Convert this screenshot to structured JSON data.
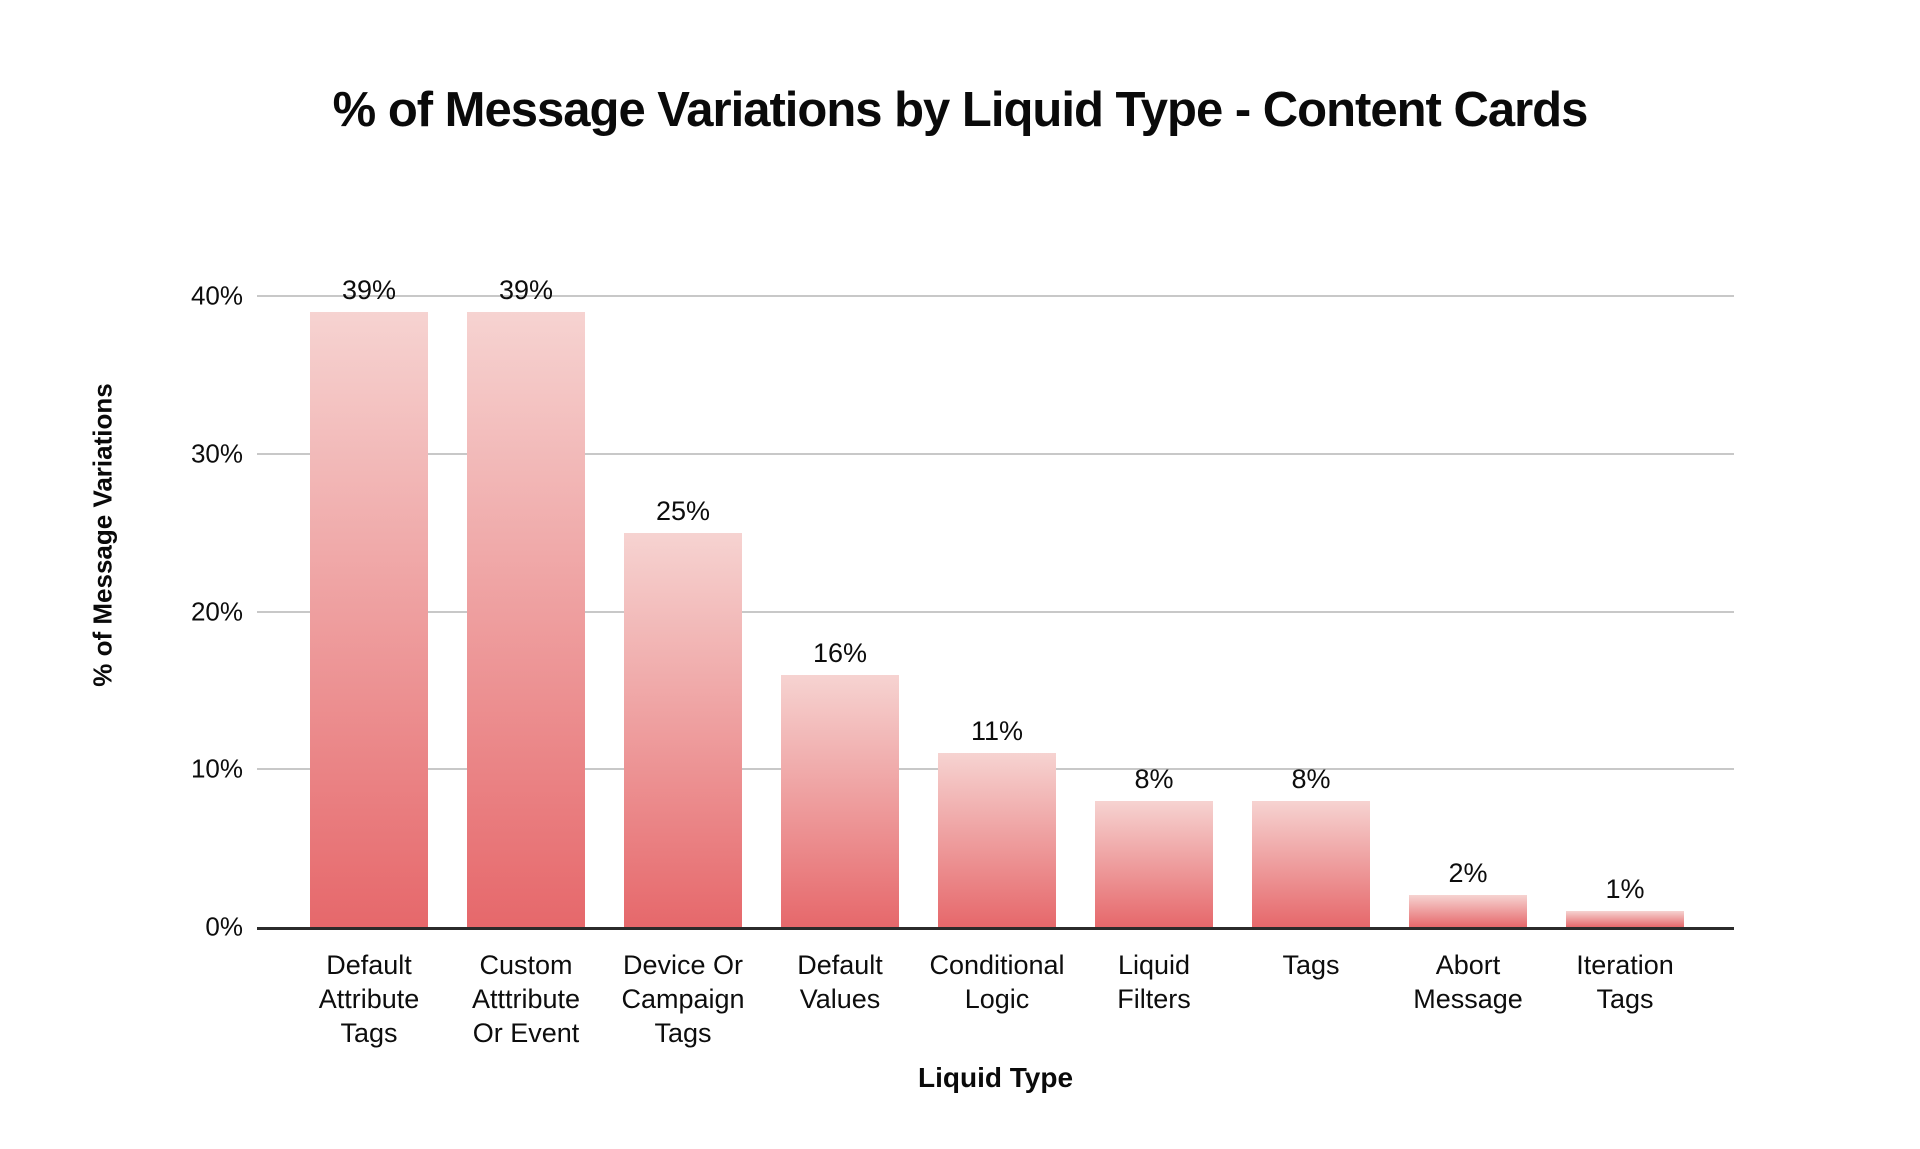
{
  "chart_data": {
    "type": "bar",
    "title": "% of Message Variations by Liquid Type - Content Cards",
    "xlabel": "Liquid Type",
    "ylabel": "% of Message Variations",
    "ylim": [
      0,
      40
    ],
    "grid": true,
    "legend": false,
    "background": "#ffffff",
    "categories": [
      "Default Attribute Tags",
      "Custom Atttribute Or Event",
      "Device Or Campaign Tags",
      "Default Values",
      "Conditional Logic",
      "Liquid Filters",
      "Tags",
      "Abort Message",
      "Iteration Tags"
    ],
    "values": [
      39,
      39,
      25,
      16,
      11,
      8,
      8,
      2,
      1
    ],
    "bar_labels": [
      "39%",
      "39%",
      "25%",
      "16%",
      "11%",
      "8%",
      "8%",
      "2%",
      "1%"
    ],
    "xtick_labels": [
      "Default\nAttribute\nTags",
      "Custom\nAtttribute\nOr Event",
      "Device Or\nCampaign\nTags",
      "Default\nValues",
      "Conditional\nLogic",
      "Liquid\nFilters",
      "Tags",
      "Abort\nMessage",
      "Iteration\nTags"
    ],
    "yticks": [
      {
        "label": "40%",
        "value": 40
      },
      {
        "label": "30%",
        "value": 30
      },
      {
        "label": "20%",
        "value": 20
      },
      {
        "label": "10%",
        "value": 10
      },
      {
        "label": "0%",
        "value": 0
      }
    ],
    "colors": {
      "bar_gradient_top": "#f6d3d1",
      "bar_gradient_bottom": "#e6686b",
      "gridline": "#c8c8c8",
      "axis_line": "#2b2b2b",
      "text": "#0d0d0d"
    }
  }
}
